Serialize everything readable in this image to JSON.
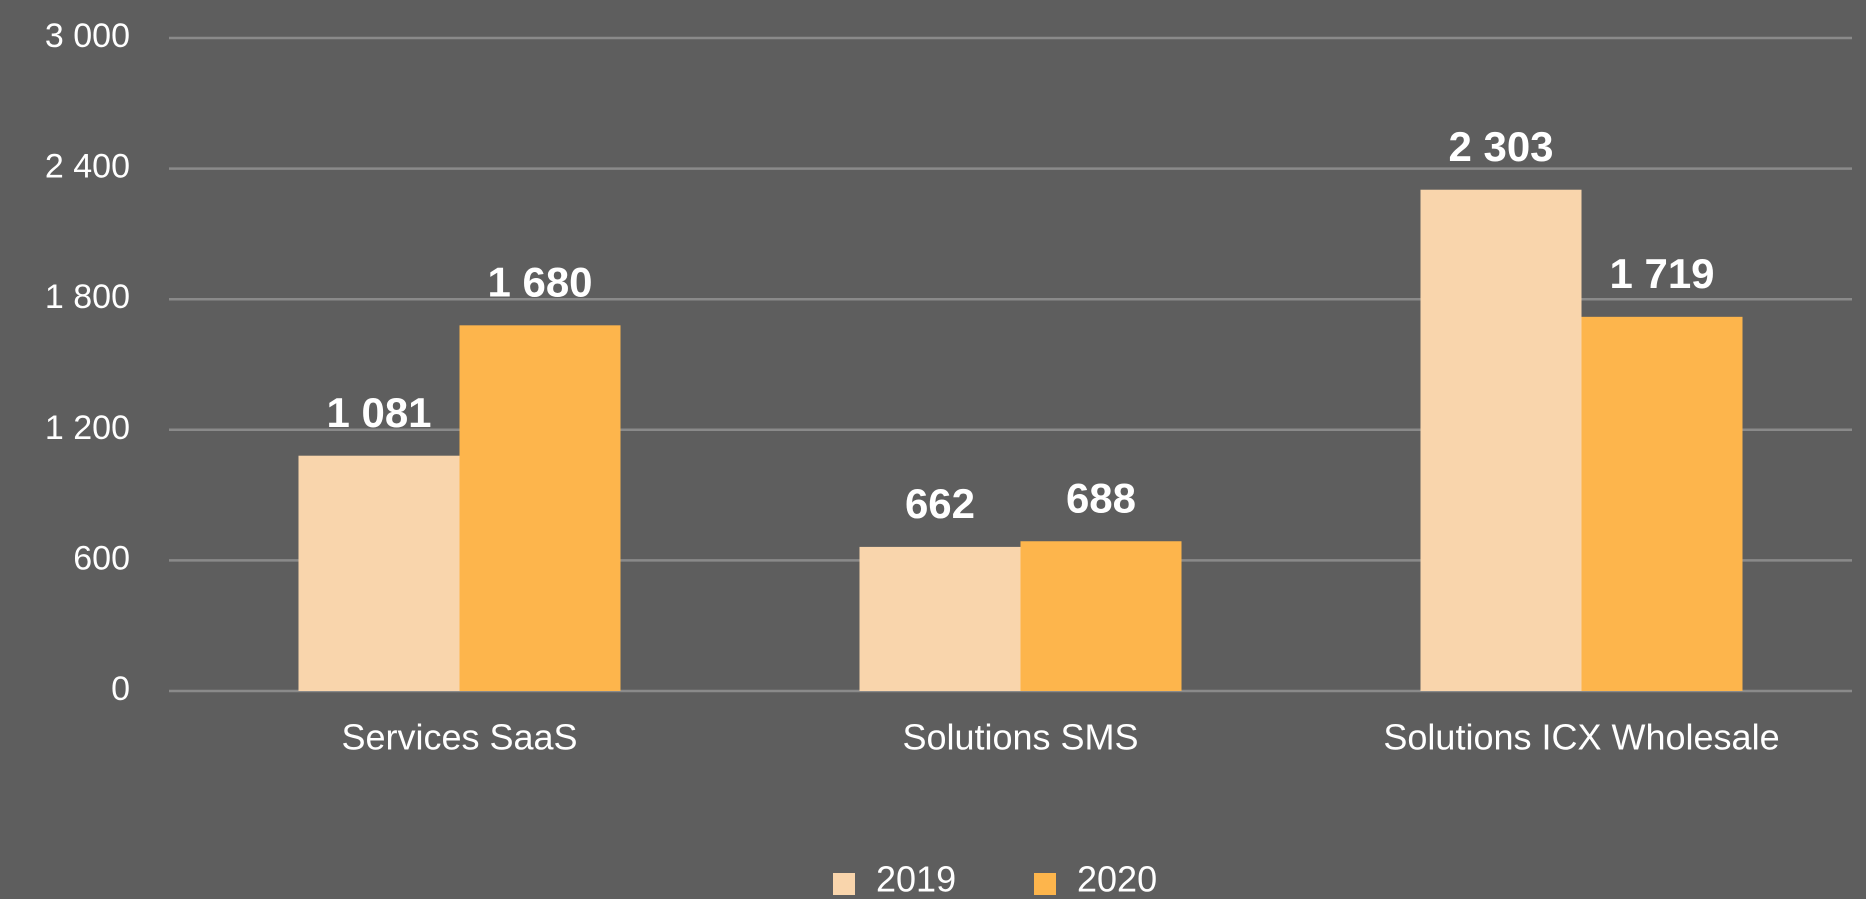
{
  "chart_data": {
    "type": "bar",
    "categories": [
      "Services SaaS",
      "Solutions SMS",
      "Solutions ICX Wholesale"
    ],
    "series": [
      {
        "name": "2019",
        "color": "#f9d5ac",
        "values": [
          1081,
          662,
          2303
        ],
        "value_labels": [
          "1 081",
          "662",
          "2 303"
        ]
      },
      {
        "name": "2020",
        "color": "#fdb54c",
        "values": [
          1680,
          688,
          1719
        ],
        "value_labels": [
          "1 680",
          "688",
          "1 719"
        ]
      }
    ],
    "ylim": [
      0,
      3000
    ],
    "yticks": [
      {
        "value": 0,
        "label": "0"
      },
      {
        "value": 600,
        "label": "600"
      },
      {
        "value": 1200,
        "label": "1 200"
      },
      {
        "value": 1800,
        "label": "1 800"
      },
      {
        "value": 2400,
        "label": "2 400"
      },
      {
        "value": 3000,
        "label": "3 000"
      }
    ],
    "grid": true,
    "legend": "bottom"
  }
}
